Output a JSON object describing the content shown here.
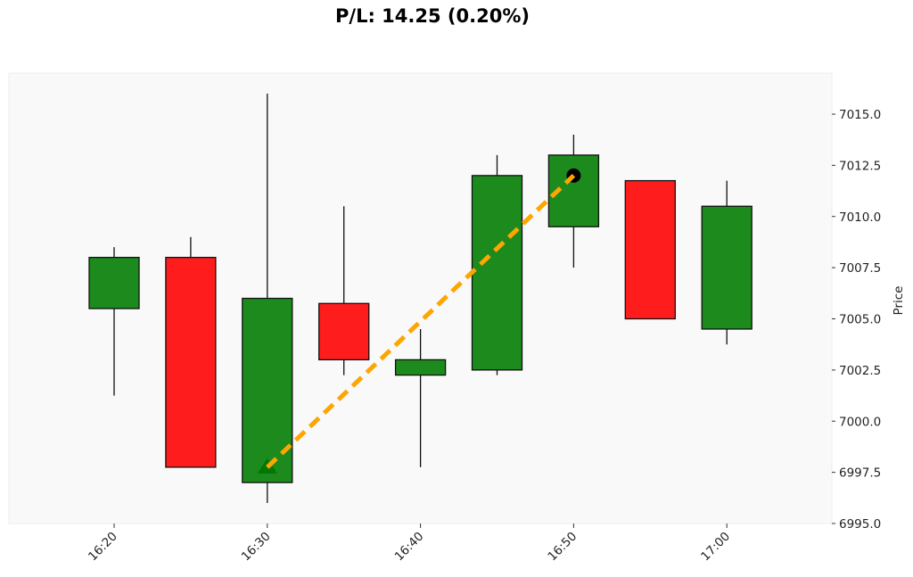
{
  "title": "P/L: 14.25 (0.20%)",
  "colors": {
    "up": "#1c8a1c",
    "down": "#ff1c1c",
    "edge": "#111111",
    "wick": "#111111",
    "trade_line": "#ffa500",
    "entry_marker": "#007800",
    "exit_marker": "#000000",
    "plot_bg": "#f9f9f9"
  },
  "chart_data": {
    "type": "candlestick",
    "title": "P/L: 14.25 (0.20%)",
    "xlabel": "",
    "ylabel": "Price",
    "ylim": [
      6995.0,
      7016.0
    ],
    "y_ticks": [
      "6995.0",
      "6997.5",
      "7000.0",
      "7002.5",
      "7005.0",
      "7007.5",
      "7010.0",
      "7012.5",
      "7015.0"
    ],
    "x_ticks": [
      "16:20",
      "16:30",
      "16:40",
      "16:50",
      "17:00"
    ],
    "grid": false,
    "y_axis_position": "right",
    "candles": [
      {
        "time": "16:20",
        "open": 7005.5,
        "high": 7008.5,
        "low": 7001.25,
        "close": 7008.0
      },
      {
        "time": "16:25",
        "open": 7008.0,
        "high": 7009.0,
        "low": 6997.75,
        "close": 6997.75
      },
      {
        "time": "16:30",
        "open": 6997.0,
        "high": 7016.0,
        "low": 6996.0,
        "close": 7006.0
      },
      {
        "time": "16:35",
        "open": 7005.75,
        "high": 7010.5,
        "low": 7002.25,
        "close": 7003.0
      },
      {
        "time": "16:40",
        "open": 7002.25,
        "high": 7004.5,
        "low": 6997.75,
        "close": 7003.0
      },
      {
        "time": "16:45",
        "open": 7002.5,
        "high": 7013.0,
        "low": 7002.25,
        "close": 7012.0
      },
      {
        "time": "16:50",
        "open": 7009.5,
        "high": 7014.0,
        "low": 7007.5,
        "close": 7013.0
      },
      {
        "time": "16:55",
        "open": 7011.75,
        "high": 7011.75,
        "low": 7005.0,
        "close": 7005.0
      },
      {
        "time": "17:00",
        "open": 7004.5,
        "high": 7011.75,
        "low": 7003.75,
        "close": 7010.5
      }
    ],
    "trade": {
      "entry": {
        "time": "16:30",
        "price": 6997.75,
        "marker": "triangle-up"
      },
      "exit": {
        "time": "16:50",
        "price": 7012.0,
        "marker": "circle"
      },
      "pl": 14.25,
      "pl_pct": "0.20%"
    }
  }
}
